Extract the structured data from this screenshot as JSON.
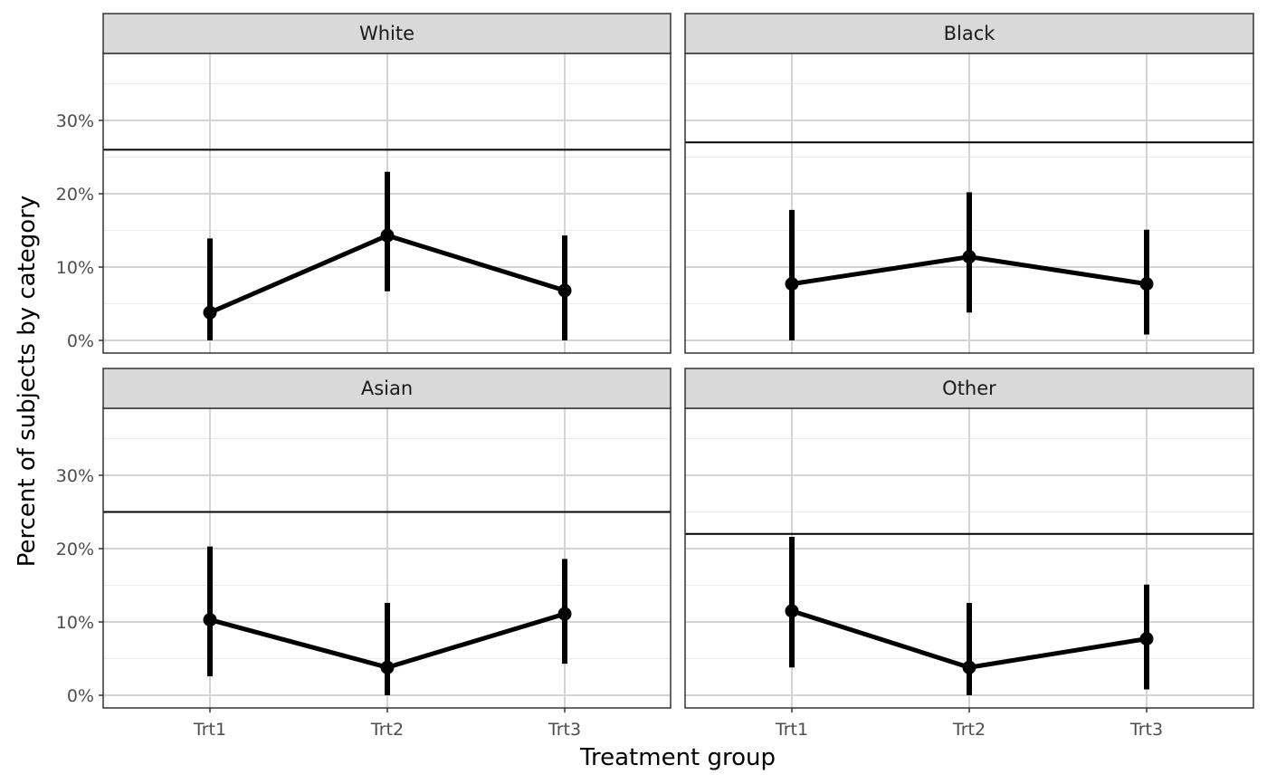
{
  "chart_data": {
    "type": "line",
    "xlabel": "Treatment group",
    "ylabel": "Percent of subjects by category",
    "categories": [
      "Trt1",
      "Trt2",
      "Trt3"
    ],
    "y_ticks": [
      "0%",
      "10%",
      "20%",
      "30%"
    ],
    "y_tick_values": [
      0,
      10,
      20,
      30
    ],
    "ylim": [
      -1.5,
      39
    ],
    "grid": true,
    "colors": {
      "line": "#000000",
      "strip_fill": "#d9d9d9",
      "grid_major": "#d4d4d4",
      "grid_minor": "#ebebeb",
      "border": "#333333"
    },
    "panels": [
      {
        "name": "White",
        "reference": 26.0,
        "values": [
          3.8,
          14.3,
          6.8
        ],
        "lower": [
          0.0,
          6.7,
          0.0
        ],
        "upper": [
          13.9,
          23.0,
          14.3
        ]
      },
      {
        "name": "Black",
        "reference": 27.0,
        "values": [
          7.7,
          11.4,
          7.7
        ],
        "lower": [
          0.0,
          3.8,
          0.8
        ],
        "upper": [
          17.8,
          20.2,
          15.1
        ]
      },
      {
        "name": "Asian",
        "reference": 25.0,
        "values": [
          10.3,
          3.8,
          11.1
        ],
        "lower": [
          2.6,
          0.0,
          4.3
        ],
        "upper": [
          20.3,
          12.6,
          18.6
        ]
      },
      {
        "name": "Other",
        "reference": 22.0,
        "values": [
          11.5,
          3.8,
          7.7
        ],
        "lower": [
          3.8,
          0.0,
          0.8
        ],
        "upper": [
          21.6,
          12.6,
          15.1
        ]
      }
    ]
  }
}
